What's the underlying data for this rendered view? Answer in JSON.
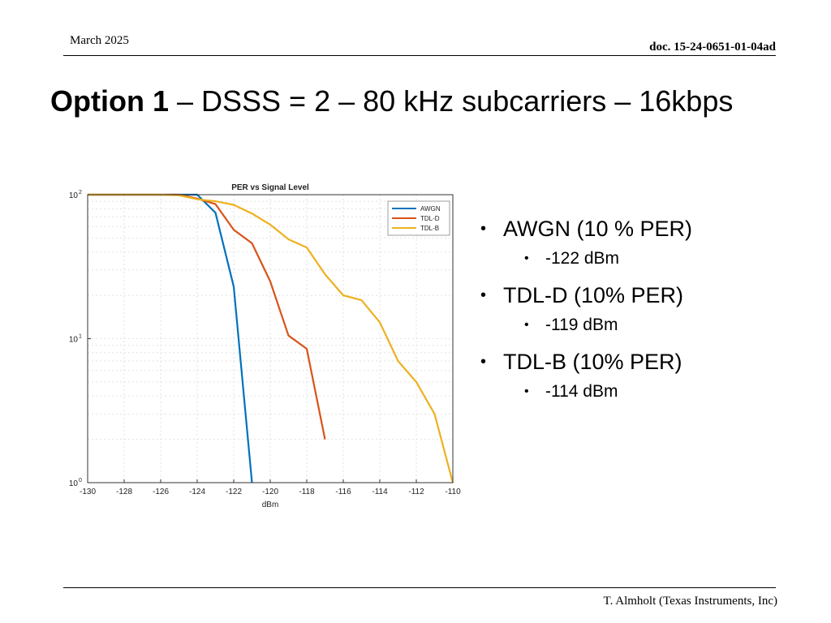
{
  "header": {
    "date": "March 2025",
    "doc_id": "doc. 15-24-0651-01-04ad"
  },
  "title": {
    "bold_part": "Option 1",
    "rest": " – DSSS = 2 – 80 kHz subcarriers – 16kbps"
  },
  "bullets": [
    {
      "label": "AWGN (10 % PER)",
      "sub": "-122 dBm"
    },
    {
      "label": "TDL-D (10% PER)",
      "sub": "-119 dBm"
    },
    {
      "label": "TDL-B (10% PER)",
      "sub": "-114 dBm"
    }
  ],
  "footer": {
    "author": "T. Almholt (Texas Instruments, Inc)"
  },
  "chart_data": {
    "type": "line",
    "title": "PER vs Signal Level",
    "xlabel": "dBm",
    "ylabel": "",
    "xlim": [
      -130,
      -110
    ],
    "ylim": [
      1,
      100
    ],
    "yscale": "log",
    "grid": true,
    "legend_position": "top-right",
    "x_ticks": [
      -130,
      -128,
      -126,
      -124,
      -122,
      -120,
      -118,
      -116,
      -114,
      -112,
      -110
    ],
    "y_ticks": [
      1,
      10,
      100
    ],
    "y_tick_labels": [
      "10",
      "10",
      "10"
    ],
    "y_tick_exponents": [
      "0",
      "1",
      "2"
    ],
    "series": [
      {
        "name": "AWGN",
        "color": "#0072BD",
        "x": [
          -130,
          -128,
          -126,
          -125,
          -124,
          -123,
          -122,
          -121
        ],
        "y": [
          100,
          100,
          100,
          100,
          100,
          75,
          23,
          1
        ]
      },
      {
        "name": "TDL-D",
        "color": "#D95319",
        "x": [
          -130,
          -128,
          -126,
          -125,
          -124,
          -123,
          -122,
          -121,
          -120,
          -119,
          -118,
          -117
        ],
        "y": [
          100,
          100,
          100,
          100,
          94,
          86,
          57,
          46,
          25,
          10.5,
          8.5,
          2
        ]
      },
      {
        "name": "TDL-B",
        "color": "#EDB120",
        "x": [
          -130,
          -128,
          -126,
          -125,
          -124,
          -123,
          -122,
          -121,
          -120,
          -119,
          -118,
          -117,
          -116,
          -115,
          -114,
          -113,
          -112,
          -111,
          -110
        ],
        "y": [
          100,
          100,
          100,
          99,
          93,
          90,
          85,
          74,
          62,
          49,
          43,
          28,
          20,
          18.5,
          13,
          7,
          5,
          3,
          1
        ]
      }
    ]
  }
}
